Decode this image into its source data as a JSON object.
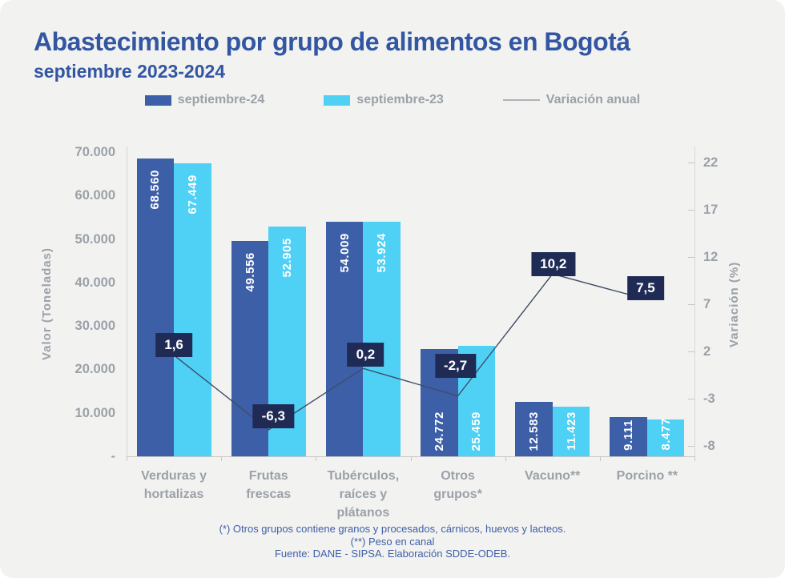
{
  "title": "Abastecimiento por grupo de alimentos en Bogotá",
  "subtitle": "septiembre 2023-2024",
  "legend": [
    {
      "label": "septiembre-24",
      "color": "#3D5FA8",
      "swatch": "rect"
    },
    {
      "label": "septiembre-23",
      "color": "#4FD0F5",
      "swatch": "rect"
    },
    {
      "label": "Variación anual",
      "color": "#AFB3B9",
      "swatch": "line"
    }
  ],
  "colors": {
    "background": "#F2F2F0",
    "title": "#3356A2",
    "bar_dark": "#3D5FA8",
    "bar_light": "#4FD0F5",
    "label_box": "#1F2B55",
    "line": "#3E4C66",
    "axis_text": "#9BA1A9",
    "footnote": "#3E5FA9"
  },
  "chart_data": {
    "type": "bar",
    "categories": [
      "Verduras y\nhortalizas",
      "Frutas\nfrescas",
      "Tubérculos,\nraíces y\nplátanos",
      "Otros\ngrupos*",
      "Vacuno**",
      "Porcino **"
    ],
    "series": [
      {
        "name": "septiembre-24",
        "color": "#3D5FA8",
        "values": [
          68560,
          49556,
          54009,
          24772,
          12583,
          9111
        ],
        "value_labels": [
          "68.560",
          "49.556",
          "54.009",
          "24.772",
          "12.583",
          "9.111"
        ]
      },
      {
        "name": "septiembre-23",
        "color": "#4FD0F5",
        "values": [
          67449,
          52905,
          53924,
          25459,
          11423,
          8477
        ],
        "value_labels": [
          "67.449",
          "52.905",
          "53.924",
          "25.459",
          "11.423",
          "8.477"
        ]
      }
    ],
    "line": {
      "name": "Variación anual",
      "color": "#3E4C66",
      "values": [
        1.6,
        -6.3,
        0.2,
        -2.7,
        10.2,
        7.5
      ],
      "labels": [
        "1,6",
        "-6,3",
        "0,2",
        "-2,7",
        "10,2",
        "7,5"
      ]
    },
    "left_axis": {
      "title": "Valor (Toneladas)",
      "tick_labels": [
        "70.000",
        "60.000",
        "50.000",
        "40.000",
        "30.000",
        "20.000",
        "10.000",
        "-"
      ],
      "tick_values": [
        70000,
        60000,
        50000,
        40000,
        30000,
        20000,
        10000,
        0
      ],
      "min": 0,
      "max": 70000
    },
    "right_axis": {
      "title": "Variación (%)",
      "tick_labels": [
        "22",
        "17",
        "12",
        "7",
        "2",
        "-3",
        "-8"
      ],
      "tick_values": [
        22,
        17,
        12,
        7,
        2,
        -3,
        -8
      ],
      "min": -8,
      "max": 22
    },
    "grid": false,
    "legend_position": "top-center"
  },
  "footnotes": [
    "(*) Otros grupos contiene granos y procesados, cárnicos, huevos y lacteos.",
    "(**) Peso en canal",
    "Fuente: DANE - SIPSA. Elaboración SDDE-ODEB."
  ]
}
